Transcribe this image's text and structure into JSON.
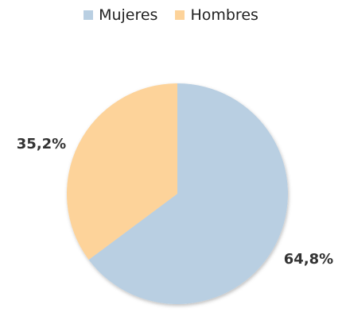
{
  "chart_data": {
    "type": "pie",
    "legend_position": "top",
    "slices": [
      {
        "name": "Mujeres",
        "value": 64.8,
        "label": "64,8%",
        "color": "#b9cfe2"
      },
      {
        "name": "Hombres",
        "value": 35.2,
        "label": "35,2%",
        "color": "#fdd39a"
      }
    ]
  }
}
